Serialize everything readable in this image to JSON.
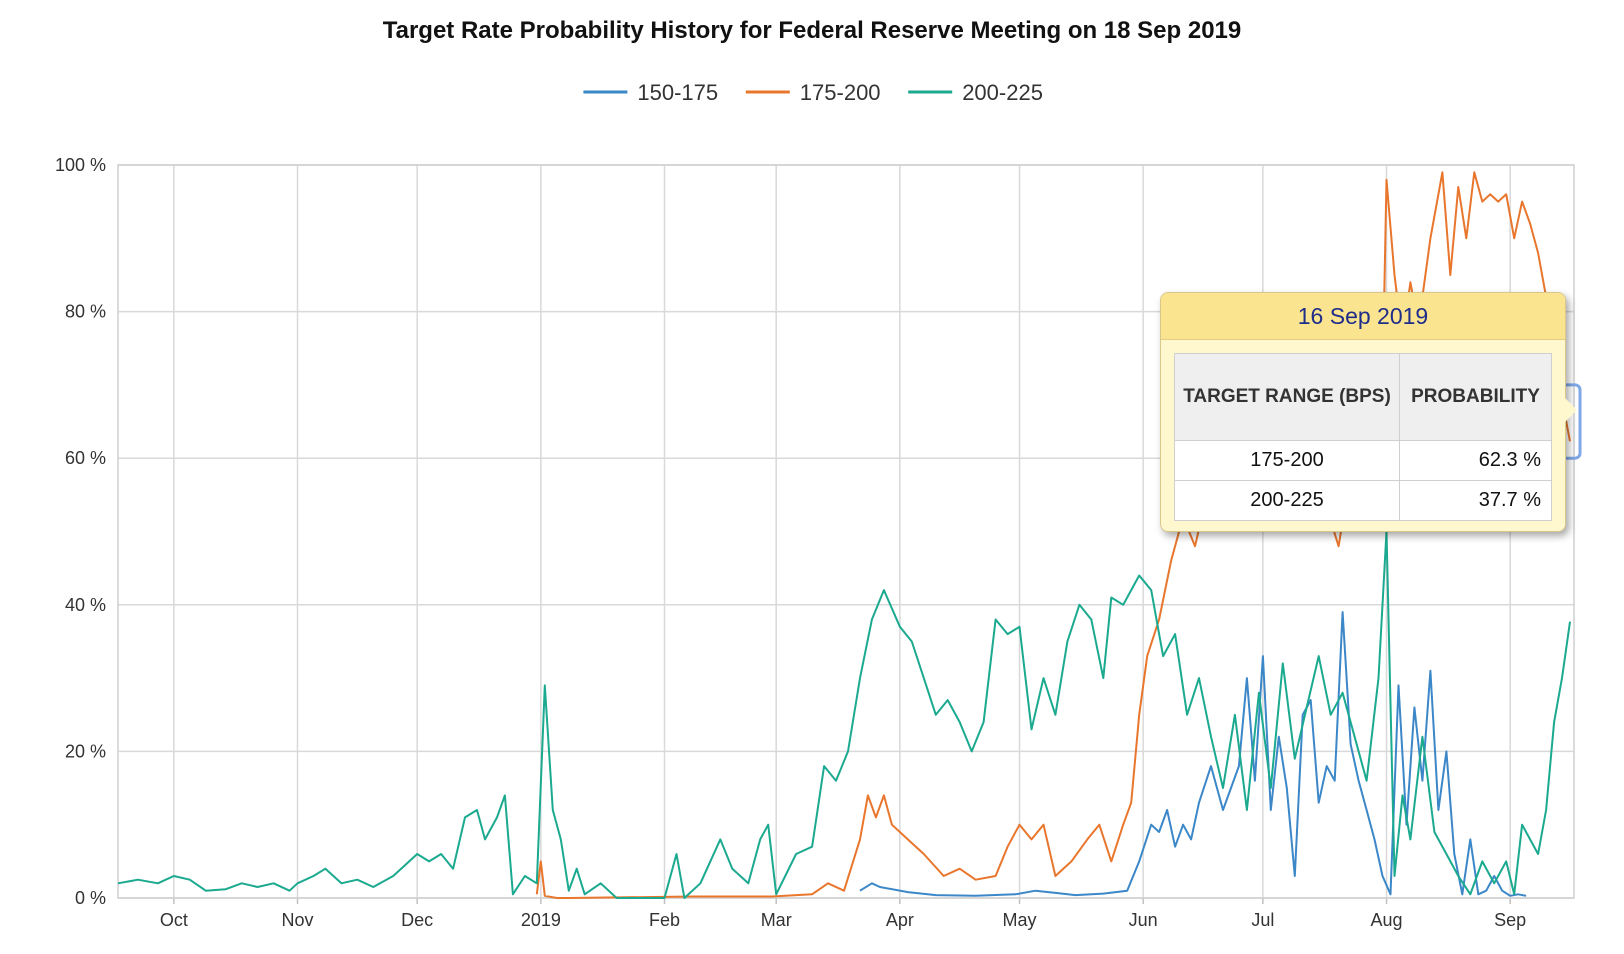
{
  "chart_data": {
    "type": "line",
    "title": "Target Rate Probability History for Federal Reserve Meeting on 18 Sep 2019",
    "xlabel": "",
    "ylabel": "",
    "ylim": [
      0,
      100
    ],
    "y_ticks": [
      "0 %",
      "20 %",
      "40 %",
      "60 %",
      "80 %",
      "100 %"
    ],
    "x_tick_labels": [
      "Oct",
      "Nov",
      "Dec",
      "2019",
      "Feb",
      "Mar",
      "Apr",
      "May",
      "Jun",
      "Jul",
      "Aug",
      "Sep"
    ],
    "x_tick_dates": [
      "2018-10-01",
      "2018-11-01",
      "2018-12-01",
      "2019-01-01",
      "2019-02-01",
      "2019-03-01",
      "2019-04-01",
      "2019-05-01",
      "2019-06-01",
      "2019-07-01",
      "2019-08-01",
      "2019-09-01"
    ],
    "x_range": [
      "2018-09-17",
      "2019-09-17"
    ],
    "grid": true,
    "legend_position": "top-center",
    "series": [
      {
        "name": "150-175",
        "color": "#3b87c8",
        "points": [
          [
            "2019-03-22",
            1
          ],
          [
            "2019-03-25",
            2
          ],
          [
            "2019-03-27",
            1.5
          ],
          [
            "2019-04-03",
            0.8
          ],
          [
            "2019-04-10",
            0.4
          ],
          [
            "2019-04-20",
            0.3
          ],
          [
            "2019-04-30",
            0.5
          ],
          [
            "2019-05-05",
            1
          ],
          [
            "2019-05-10",
            0.7
          ],
          [
            "2019-05-15",
            0.4
          ],
          [
            "2019-05-22",
            0.6
          ],
          [
            "2019-05-28",
            1
          ],
          [
            "2019-05-31",
            5
          ],
          [
            "2019-06-03",
            10
          ],
          [
            "2019-06-05",
            9
          ],
          [
            "2019-06-07",
            12
          ],
          [
            "2019-06-09",
            7
          ],
          [
            "2019-06-11",
            10
          ],
          [
            "2019-06-13",
            8
          ],
          [
            "2019-06-15",
            13
          ],
          [
            "2019-06-18",
            18
          ],
          [
            "2019-06-21",
            12
          ],
          [
            "2019-06-25",
            18
          ],
          [
            "2019-06-27",
            30
          ],
          [
            "2019-06-29",
            16
          ],
          [
            "2019-07-01",
            33
          ],
          [
            "2019-07-03",
            12
          ],
          [
            "2019-07-05",
            22
          ],
          [
            "2019-07-07",
            15
          ],
          [
            "2019-07-09",
            3
          ],
          [
            "2019-07-11",
            25
          ],
          [
            "2019-07-13",
            27
          ],
          [
            "2019-07-15",
            13
          ],
          [
            "2019-07-17",
            18
          ],
          [
            "2019-07-19",
            16
          ],
          [
            "2019-07-21",
            39
          ],
          [
            "2019-07-23",
            21
          ],
          [
            "2019-07-25",
            16
          ],
          [
            "2019-07-27",
            12
          ],
          [
            "2019-07-29",
            8
          ],
          [
            "2019-07-31",
            3
          ],
          [
            "2019-08-02",
            0.5
          ],
          [
            "2019-08-04",
            29
          ],
          [
            "2019-08-06",
            10
          ],
          [
            "2019-08-08",
            26
          ],
          [
            "2019-08-10",
            16
          ],
          [
            "2019-08-12",
            31
          ],
          [
            "2019-08-14",
            12
          ],
          [
            "2019-08-16",
            20
          ],
          [
            "2019-08-18",
            6
          ],
          [
            "2019-08-20",
            0.5
          ],
          [
            "2019-08-22",
            8
          ],
          [
            "2019-08-24",
            0.5
          ],
          [
            "2019-08-26",
            1
          ],
          [
            "2019-08-28",
            3
          ],
          [
            "2019-08-30",
            1
          ],
          [
            "2019-09-01",
            0.3
          ],
          [
            "2019-09-03",
            0.5
          ],
          [
            "2019-09-05",
            0.3
          ]
        ]
      },
      {
        "name": "175-200",
        "color": "#e8762d",
        "points": [
          [
            "2018-12-31",
            0.5
          ],
          [
            "2019-01-01",
            5
          ],
          [
            "2019-01-02",
            0.3
          ],
          [
            "2019-01-05",
            0
          ],
          [
            "2019-01-08",
            0
          ],
          [
            "2019-02-08",
            0.2
          ],
          [
            "2019-02-28",
            0.2
          ],
          [
            "2019-03-10",
            0.5
          ],
          [
            "2019-03-14",
            2
          ],
          [
            "2019-03-18",
            1
          ],
          [
            "2019-03-22",
            8
          ],
          [
            "2019-03-24",
            14
          ],
          [
            "2019-03-26",
            11
          ],
          [
            "2019-03-28",
            14
          ],
          [
            "2019-03-30",
            10
          ],
          [
            "2019-04-03",
            8
          ],
          [
            "2019-04-07",
            6
          ],
          [
            "2019-04-12",
            3
          ],
          [
            "2019-04-16",
            4
          ],
          [
            "2019-04-20",
            2.5
          ],
          [
            "2019-04-25",
            3
          ],
          [
            "2019-04-28",
            7
          ],
          [
            "2019-05-01",
            10
          ],
          [
            "2019-05-04",
            8
          ],
          [
            "2019-05-07",
            10
          ],
          [
            "2019-05-10",
            3
          ],
          [
            "2019-05-14",
            5
          ],
          [
            "2019-05-18",
            8
          ],
          [
            "2019-05-21",
            10
          ],
          [
            "2019-05-24",
            5
          ],
          [
            "2019-05-27",
            10
          ],
          [
            "2019-05-29",
            13
          ],
          [
            "2019-05-31",
            25
          ],
          [
            "2019-06-02",
            33
          ],
          [
            "2019-06-05",
            38
          ],
          [
            "2019-06-08",
            46
          ],
          [
            "2019-06-11",
            52
          ],
          [
            "2019-06-14",
            48
          ],
          [
            "2019-06-17",
            55
          ],
          [
            "2019-06-20",
            60
          ],
          [
            "2019-06-25",
            62
          ],
          [
            "2019-07-01",
            64
          ],
          [
            "2019-07-06",
            60
          ],
          [
            "2019-07-11",
            58
          ],
          [
            "2019-07-16",
            55
          ],
          [
            "2019-07-20",
            48
          ],
          [
            "2019-07-23",
            58
          ],
          [
            "2019-07-28",
            62
          ],
          [
            "2019-07-31",
            70
          ],
          [
            "2019-08-01",
            98
          ],
          [
            "2019-08-03",
            85
          ],
          [
            "2019-08-05",
            76
          ],
          [
            "2019-08-07",
            84
          ],
          [
            "2019-08-09",
            78
          ],
          [
            "2019-08-12",
            90
          ],
          [
            "2019-08-15",
            99
          ],
          [
            "2019-08-17",
            85
          ],
          [
            "2019-08-19",
            97
          ],
          [
            "2019-08-21",
            90
          ],
          [
            "2019-08-23",
            99
          ],
          [
            "2019-08-25",
            95
          ],
          [
            "2019-08-27",
            96
          ],
          [
            "2019-08-29",
            95
          ],
          [
            "2019-08-31",
            96
          ],
          [
            "2019-09-02",
            90
          ],
          [
            "2019-09-04",
            95
          ],
          [
            "2019-09-06",
            92
          ],
          [
            "2019-09-08",
            88
          ],
          [
            "2019-09-10",
            82
          ],
          [
            "2019-09-12",
            75
          ],
          [
            "2019-09-14",
            68
          ],
          [
            "2019-09-16",
            62.3
          ]
        ]
      },
      {
        "name": "200-225",
        "color": "#1ba98f",
        "points": [
          [
            "2018-09-17",
            2
          ],
          [
            "2018-09-22",
            2.5
          ],
          [
            "2018-09-27",
            2
          ],
          [
            "2018-10-01",
            3
          ],
          [
            "2018-10-05",
            2.5
          ],
          [
            "2018-10-09",
            1
          ],
          [
            "2018-10-14",
            1.2
          ],
          [
            "2018-10-18",
            2
          ],
          [
            "2018-10-22",
            1.5
          ],
          [
            "2018-10-26",
            2
          ],
          [
            "2018-10-30",
            1
          ],
          [
            "2018-11-01",
            2
          ],
          [
            "2018-11-05",
            3
          ],
          [
            "2018-11-08",
            4
          ],
          [
            "2018-11-12",
            2
          ],
          [
            "2018-11-16",
            2.5
          ],
          [
            "2018-11-20",
            1.5
          ],
          [
            "2018-11-25",
            3
          ],
          [
            "2018-11-29",
            5
          ],
          [
            "2018-12-01",
            6
          ],
          [
            "2018-12-04",
            5
          ],
          [
            "2018-12-07",
            6
          ],
          [
            "2018-12-10",
            4
          ],
          [
            "2018-12-13",
            11
          ],
          [
            "2018-12-16",
            12
          ],
          [
            "2018-12-18",
            8
          ],
          [
            "2018-12-21",
            11
          ],
          [
            "2018-12-23",
            14
          ],
          [
            "2018-12-25",
            0.5
          ],
          [
            "2018-12-28",
            3
          ],
          [
            "2018-12-31",
            2
          ],
          [
            "2019-01-02",
            29
          ],
          [
            "2019-01-04",
            12
          ],
          [
            "2019-01-06",
            8
          ],
          [
            "2019-01-08",
            1
          ],
          [
            "2019-01-10",
            4
          ],
          [
            "2019-01-12",
            0.5
          ],
          [
            "2019-01-16",
            2
          ],
          [
            "2019-01-20",
            0
          ],
          [
            "2019-02-01",
            0
          ],
          [
            "2019-02-04",
            6
          ],
          [
            "2019-02-06",
            0
          ],
          [
            "2019-02-10",
            2
          ],
          [
            "2019-02-15",
            8
          ],
          [
            "2019-02-18",
            4
          ],
          [
            "2019-02-22",
            2
          ],
          [
            "2019-02-25",
            8
          ],
          [
            "2019-02-27",
            10
          ],
          [
            "2019-03-01",
            0.5
          ],
          [
            "2019-03-06",
            6
          ],
          [
            "2019-03-10",
            7
          ],
          [
            "2019-03-13",
            18
          ],
          [
            "2019-03-16",
            16
          ],
          [
            "2019-03-19",
            20
          ],
          [
            "2019-03-22",
            30
          ],
          [
            "2019-03-25",
            38
          ],
          [
            "2019-03-28",
            42
          ],
          [
            "2019-04-01",
            37
          ],
          [
            "2019-04-04",
            35
          ],
          [
            "2019-04-07",
            30
          ],
          [
            "2019-04-10",
            25
          ],
          [
            "2019-04-13",
            27
          ],
          [
            "2019-04-16",
            24
          ],
          [
            "2019-04-19",
            20
          ],
          [
            "2019-04-22",
            24
          ],
          [
            "2019-04-25",
            38
          ],
          [
            "2019-04-28",
            36
          ],
          [
            "2019-05-01",
            37
          ],
          [
            "2019-05-04",
            23
          ],
          [
            "2019-05-07",
            30
          ],
          [
            "2019-05-10",
            25
          ],
          [
            "2019-05-13",
            35
          ],
          [
            "2019-05-16",
            40
          ],
          [
            "2019-05-19",
            38
          ],
          [
            "2019-05-22",
            30
          ],
          [
            "2019-05-24",
            41
          ],
          [
            "2019-05-27",
            40
          ],
          [
            "2019-05-29",
            42
          ],
          [
            "2019-05-31",
            44
          ],
          [
            "2019-06-03",
            42
          ],
          [
            "2019-06-06",
            33
          ],
          [
            "2019-06-09",
            36
          ],
          [
            "2019-06-12",
            25
          ],
          [
            "2019-06-15",
            30
          ],
          [
            "2019-06-18",
            22
          ],
          [
            "2019-06-21",
            15
          ],
          [
            "2019-06-24",
            25
          ],
          [
            "2019-06-27",
            12
          ],
          [
            "2019-06-30",
            28
          ],
          [
            "2019-07-03",
            15
          ],
          [
            "2019-07-06",
            32
          ],
          [
            "2019-07-09",
            19
          ],
          [
            "2019-07-12",
            26
          ],
          [
            "2019-07-15",
            33
          ],
          [
            "2019-07-18",
            25
          ],
          [
            "2019-07-21",
            28
          ],
          [
            "2019-07-24",
            22
          ],
          [
            "2019-07-27",
            16
          ],
          [
            "2019-07-30",
            30
          ],
          [
            "2019-08-01",
            50
          ],
          [
            "2019-08-03",
            3
          ],
          [
            "2019-08-05",
            14
          ],
          [
            "2019-08-07",
            8
          ],
          [
            "2019-08-10",
            22
          ],
          [
            "2019-08-13",
            9
          ],
          [
            "2019-08-16",
            6
          ],
          [
            "2019-08-19",
            3
          ],
          [
            "2019-08-22",
            0.5
          ],
          [
            "2019-08-25",
            5
          ],
          [
            "2019-08-28",
            2
          ],
          [
            "2019-08-31",
            5
          ],
          [
            "2019-09-02",
            0.5
          ],
          [
            "2019-09-04",
            10
          ],
          [
            "2019-09-06",
            8
          ],
          [
            "2019-09-08",
            6
          ],
          [
            "2019-09-10",
            12
          ],
          [
            "2019-09-12",
            24
          ],
          [
            "2019-09-14",
            30
          ],
          [
            "2019-09-16",
            37.7
          ]
        ]
      }
    ],
    "tooltip": {
      "date": "16 Sep 2019",
      "header_range": "TARGET RANGE (BPS)",
      "header_probability": "PROBABILITY",
      "rows": [
        {
          "range": "175-200",
          "probability": "62.3 %"
        },
        {
          "range": "200-225",
          "probability": "37.7 %"
        }
      ]
    }
  }
}
